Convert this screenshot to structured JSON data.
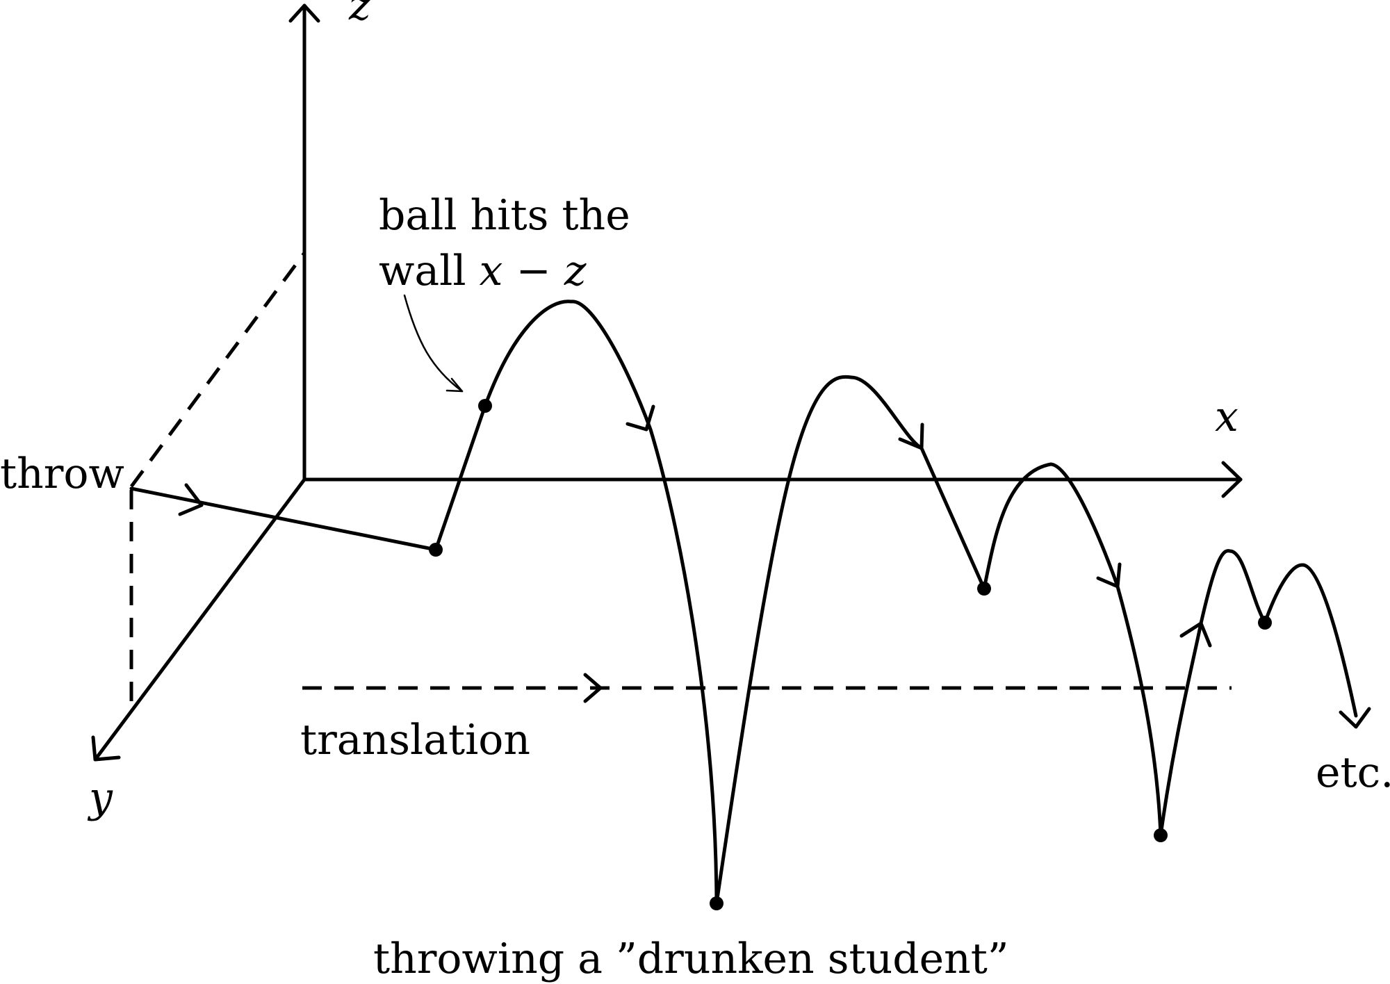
{
  "labels": {
    "axis_z": "z",
    "axis_x": "x",
    "axis_y": "y",
    "throw": "throw",
    "wall_line1": "ball hits the",
    "wall_line2_prefix": "wall ",
    "wall_line2_math": "x − z",
    "translation": "translation",
    "etc": "etc.",
    "caption": "throwing a ”drunken student”"
  }
}
